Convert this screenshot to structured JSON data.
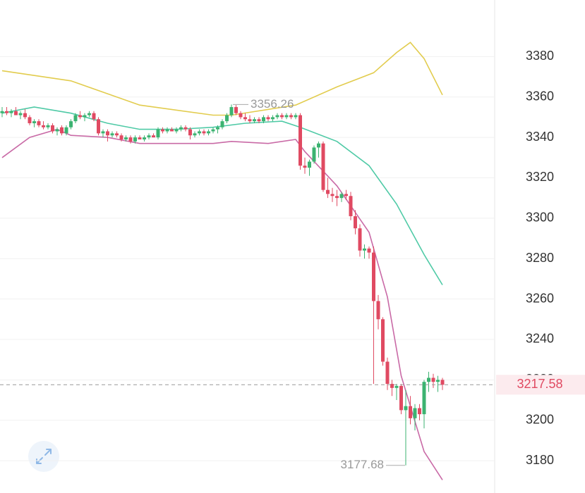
{
  "chart_data": {
    "type": "candlestick",
    "open": [
      3352,
      3353,
      3352,
      3353,
      3351,
      3352,
      3350,
      3347,
      3348,
      3346,
      3345,
      3346,
      3343,
      3345,
      3342,
      3345,
      3348,
      3351,
      3350,
      3351,
      3352,
      3349,
      3342,
      3343,
      3341,
      3342,
      3341,
      3339,
      3340,
      3338,
      3340,
      3339,
      3340,
      3341,
      3340,
      3344,
      3343,
      3344,
      3343,
      3344,
      3345,
      3344,
      3341,
      3342,
      3343,
      3342,
      3343,
      3344,
      3345,
      3348,
      3351,
      3355,
      3352,
      3350,
      3349,
      3348,
      3349,
      3348,
      3350,
      3349,
      3350,
      3351,
      3350,
      3351,
      3350,
      3351,
      3326,
      3325,
      3328,
      3335,
      3337,
      3314,
      3312,
      3311,
      3310,
      3312,
      3311,
      3301,
      3295,
      3284,
      3285,
      3283,
      3259,
      3250,
      3229,
      3218,
      3216,
      3217,
      3205,
      3207,
      3201,
      3206,
      3203,
      3219,
      3221,
      3219,
      3220
    ],
    "high": [
      3355,
      3355,
      3354,
      3355,
      3353,
      3354,
      3351,
      3349,
      3349,
      3348,
      3347,
      3347,
      3345,
      3346,
      3346,
      3349,
      3352,
      3353,
      3352,
      3353,
      3353,
      3350,
      3344,
      3344,
      3343,
      3343,
      3342,
      3341,
      3341,
      3341,
      3341,
      3341,
      3342,
      3342,
      3345,
      3345,
      3345,
      3345,
      3345,
      3346,
      3346,
      3345,
      3343,
      3344,
      3344,
      3344,
      3345,
      3346,
      3349,
      3352,
      3356.26,
      3356,
      3353,
      3352,
      3351,
      3350,
      3350,
      3351,
      3351,
      3351,
      3352,
      3352,
      3352,
      3352,
      3352,
      3352,
      3330,
      3329,
      3336,
      3338,
      3338,
      3320,
      3315,
      3314,
      3313,
      3314,
      3313,
      3304,
      3297,
      3287,
      3286,
      3286,
      3262,
      3251,
      3231,
      3220,
      3218,
      3218,
      3215,
      3212,
      3208,
      3208,
      3220,
      3224,
      3223,
      3222,
      3221
    ],
    "low": [
      3350,
      3351,
      3350,
      3351,
      3349,
      3349,
      3346,
      3345,
      3345,
      3344,
      3344,
      3342,
      3341,
      3341,
      3341,
      3344,
      3347,
      3349,
      3348,
      3350,
      3348,
      3341,
      3340,
      3338,
      3340,
      3340,
      3338,
      3338,
      3337,
      3337,
      3339,
      3338,
      3339,
      3340,
      3339,
      3342,
      3342,
      3343,
      3342,
      3343,
      3343,
      3339,
      3340,
      3341,
      3341,
      3341,
      3342,
      3342,
      3344,
      3347,
      3350,
      3351,
      3349,
      3348,
      3347,
      3347,
      3347,
      3347,
      3348,
      3348,
      3349,
      3349,
      3349,
      3349,
      3349,
      3324,
      3322,
      3321,
      3327,
      3330,
      3313,
      3310,
      3308,
      3306,
      3308,
      3309,
      3299,
      3292,
      3281,
      3280,
      3280,
      3218,
      3245,
      3227,
      3215,
      3212,
      3210,
      3203,
      3177.68,
      3198,
      3195,
      3200,
      3196,
      3214,
      3216,
      3214,
      3215
    ],
    "close": [
      3353,
      3352,
      3353,
      3351,
      3352,
      3350,
      3347,
      3348,
      3346,
      3345,
      3346,
      3343,
      3344,
      3342,
      3345,
      3348,
      3351,
      3350,
      3351,
      3352,
      3349,
      3342,
      3343,
      3341,
      3342,
      3341,
      3339,
      3340,
      3338,
      3340,
      3339,
      3340,
      3341,
      3340,
      3344,
      3343,
      3344,
      3343,
      3344,
      3345,
      3344,
      3341,
      3342,
      3343,
      3342,
      3343,
      3344,
      3345,
      3348,
      3351,
      3355,
      3352,
      3350,
      3349,
      3348,
      3349,
      3348,
      3350,
      3349,
      3350,
      3351,
      3350,
      3351,
      3350,
      3351,
      3326,
      3325,
      3328,
      3335,
      3337,
      3314,
      3312,
      3311,
      3310,
      3312,
      3311,
      3301,
      3295,
      3284,
      3285,
      3283,
      3259,
      3250,
      3229,
      3218,
      3216,
      3217,
      3205,
      3207,
      3201,
      3206,
      3203,
      3219,
      3221,
      3219,
      3220,
      3217.58
    ],
    "up_color": "#3cb371",
    "down_color": "#e04a62",
    "bands": [
      {
        "color": "#e2cc4e",
        "x": [
          0,
          15,
          30,
          46,
          50,
          64,
          73,
          81,
          86,
          89,
          92,
          96
        ],
        "values": [
          3373,
          3368,
          3356,
          3351,
          3351,
          3356,
          3365,
          3372,
          3382,
          3387,
          3379,
          3361
        ]
      },
      {
        "color": "#4fcaa6",
        "x": [
          0,
          7,
          15,
          23,
          30,
          38,
          46,
          53,
          61,
          65,
          73,
          80,
          86,
          92,
          96
        ],
        "values": [
          3352,
          3355,
          3352,
          3347,
          3344,
          3344,
          3345,
          3347,
          3348,
          3345,
          3338,
          3326,
          3307,
          3282,
          3267
        ]
      },
      {
        "color": "#c96aa6",
        "x": [
          0,
          6,
          12,
          15,
          23,
          30,
          38,
          46,
          50,
          58,
          64,
          66,
          73,
          80,
          84,
          87,
          92,
          96
        ],
        "values": [
          3330,
          3340,
          3344,
          3341,
          3340,
          3337,
          3337,
          3337,
          3338,
          3337,
          3339,
          3333,
          3316,
          3293,
          3261,
          3222,
          3184.5,
          3170.5
        ]
      }
    ],
    "ylim": [
      3164,
      3408
    ],
    "yticks": [
      3180,
      3200,
      3220,
      3240,
      3260,
      3280,
      3300,
      3320,
      3340,
      3360,
      3380
    ],
    "grid": true
  }
}
